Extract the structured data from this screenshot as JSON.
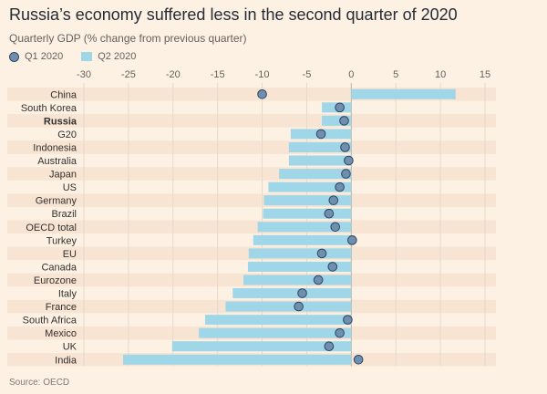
{
  "title": "Russia’s economy suffered less in the second quarter of 2020",
  "subtitle": "Quarterly GDP (% change from previous quarter)",
  "source": "Source: OECD",
  "colors": {
    "background": "#fdf1e4",
    "band": "#f7e4d2",
    "q2_bar": "#9fd6e8",
    "q1_dot": "#6f8fb0",
    "q1_dot_stroke": "#2f4660",
    "axis_text": "#66605c"
  },
  "chart_data": {
    "type": "bar",
    "orientation": "horizontal",
    "title": "Russia’s economy suffered less in the second quarter of 2020",
    "subtitle": "Quarterly GDP (% change from previous quarter)",
    "xlim": [
      -30,
      15
    ],
    "xticks": [
      -30,
      -25,
      -20,
      -15,
      -10,
      -5,
      0,
      5,
      10,
      15
    ],
    "legend_position": "top-left",
    "highlight": "Russia",
    "categories": [
      "China",
      "South Korea",
      "Russia",
      "G20",
      "Indonesia",
      "Australia",
      "Japan",
      "US",
      "Germany",
      "Brazil",
      "OECD total",
      "Turkey",
      "EU",
      "Canada",
      "Eurozone",
      "Italy",
      "France",
      "South Africa",
      "Mexico",
      "UK",
      "India"
    ],
    "series": [
      {
        "name": "Q1 2020",
        "mark": "dot",
        "values": [
          -10.0,
          -1.3,
          -0.8,
          -3.4,
          -0.7,
          -0.3,
          -0.6,
          -1.3,
          -2.0,
          -2.5,
          -1.8,
          0.1,
          -3.3,
          -2.1,
          -3.7,
          -5.5,
          -5.9,
          -0.4,
          -1.3,
          -2.5,
          0.8
        ]
      },
      {
        "name": "Q2 2020",
        "mark": "bar",
        "values": [
          11.7,
          -3.3,
          -3.3,
          -6.8,
          -7.0,
          -7.0,
          -8.1,
          -9.3,
          -9.8,
          -9.9,
          -10.5,
          -11.0,
          -11.5,
          -11.6,
          -12.1,
          -13.3,
          -14.1,
          -16.4,
          -17.1,
          -20.1,
          -25.6
        ]
      }
    ]
  }
}
